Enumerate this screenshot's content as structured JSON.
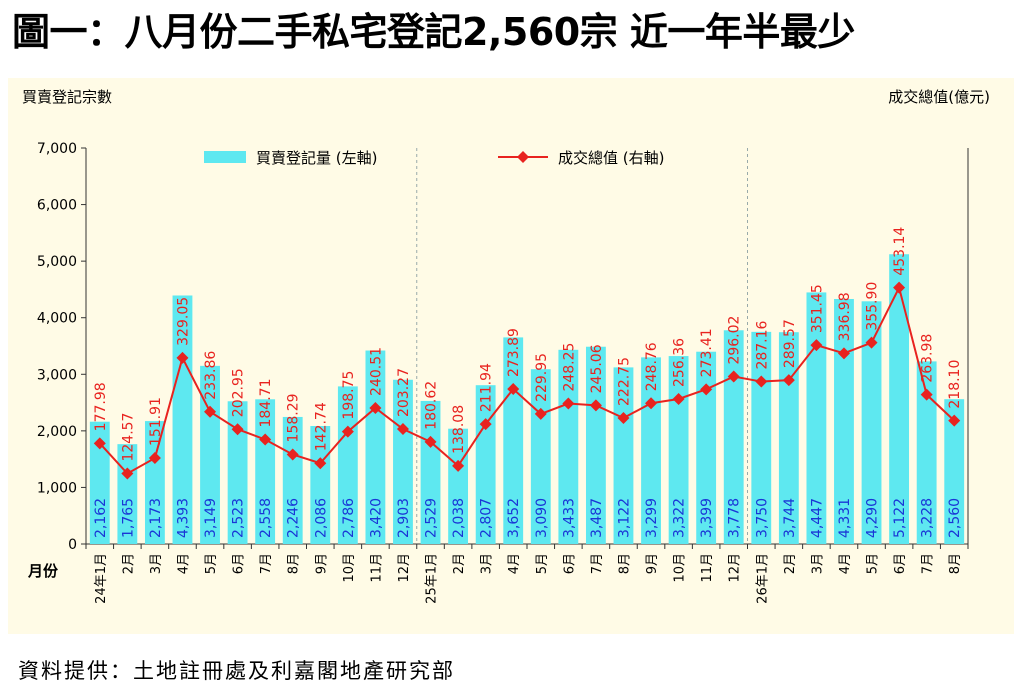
{
  "title": "圖一：八月份二手私宅登記2,560宗  近一年半最少",
  "source": "資料提供：土地註冊處及利嘉閣地產研究部",
  "chart_data": {
    "type": "bar",
    "left_axis_title": "買賣登記宗數",
    "right_axis_title": "成交總值(億元)",
    "xlabel": "月份",
    "ylim_left": [
      0,
      7000
    ],
    "ylim_right": [
      0,
      700
    ],
    "yticks_left": [
      "0",
      "1,000",
      "2,000",
      "3,000",
      "4,000",
      "5,000",
      "6,000",
      "7,000"
    ],
    "categories": [
      "24年1月",
      "2月",
      "3月",
      "4月",
      "5月",
      "6月",
      "7月",
      "8月",
      "9月",
      "10月",
      "11月",
      "12月",
      "25年1月",
      "2月",
      "3月",
      "4月",
      "5月",
      "6月",
      "7月",
      "8月",
      "9月",
      "10月",
      "11月",
      "12月",
      "26年1月",
      "2月",
      "3月",
      "4月",
      "5月",
      "6月",
      "7月",
      "8月"
    ],
    "series": [
      {
        "name": "買賣登記量 (左軸)",
        "type": "bar",
        "axis": "left",
        "color": "#5ee8f0",
        "values": [
          2162,
          1765,
          2173,
          4393,
          3149,
          2523,
          2558,
          2246,
          2086,
          2786,
          3420,
          2903,
          2529,
          2038,
          2807,
          3652,
          3090,
          3433,
          3487,
          3122,
          3299,
          3322,
          3399,
          3778,
          3750,
          3744,
          4447,
          4331,
          4290,
          5122,
          3228,
          2560
        ],
        "labels": [
          "2,162",
          "1,765",
          "2,173",
          "4,393",
          "3,149",
          "2,523",
          "2,558",
          "2,246",
          "2,086",
          "2,786",
          "3,420",
          "2,903",
          "2,529",
          "2,038",
          "2,807",
          "3,652",
          "3,090",
          "3,433",
          "3,487",
          "3,122",
          "3,299",
          "3,322",
          "3,399",
          "3,778",
          "3,750",
          "3,744",
          "4,447",
          "4,331",
          "4,290",
          "5,122",
          "3,228",
          "2,560"
        ]
      },
      {
        "name": "成交總值 (右軸)",
        "type": "line",
        "axis": "right",
        "color": "#e8231f",
        "values": [
          177.98,
          124.57,
          151.91,
          329.05,
          233.86,
          202.95,
          184.71,
          158.29,
          142.74,
          198.75,
          240.51,
          203.27,
          180.62,
          138.08,
          211.94,
          273.89,
          229.95,
          248.25,
          245.06,
          222.75,
          248.76,
          256.36,
          273.41,
          296.02,
          287.16,
          289.57,
          351.45,
          336.98,
          355.9,
          453.14,
          263.98,
          218.1
        ],
        "labels": [
          "177.98",
          "124.57",
          "151.91",
          "329.05",
          "233.86",
          "202.95",
          "184.71",
          "158.29",
          "142.74",
          "198.75",
          "240.51",
          "203.27",
          "180.62",
          "138.08",
          "211.94",
          "273.89",
          "229.95",
          "248.25",
          "245.06",
          "222.75",
          "248.76",
          "256.36",
          "273.41",
          "296.02",
          "287.16",
          "289.57",
          "351.45",
          "336.98",
          "355.90",
          "453.14",
          "263.98",
          "218.10"
        ]
      }
    ],
    "label_colors": {
      "bar_labels": "#1a36d6",
      "line_labels": "#e8231f"
    },
    "year_dividers": true,
    "grid": false,
    "legend_position": "top"
  }
}
